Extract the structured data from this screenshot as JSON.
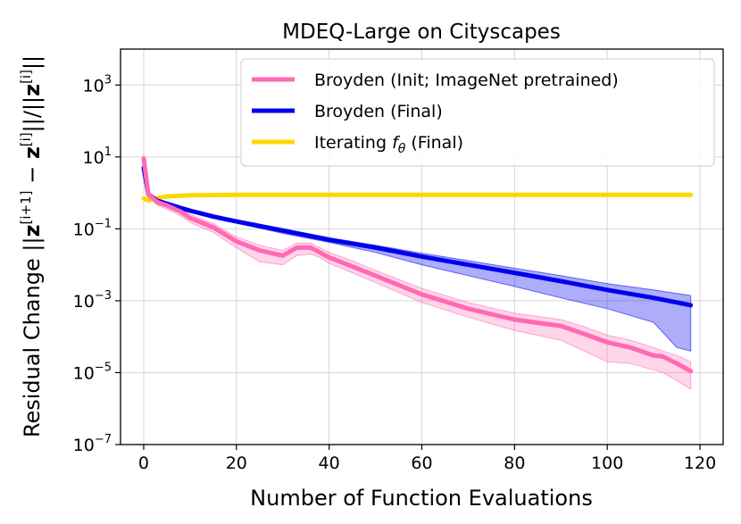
{
  "chart_data": {
    "type": "line",
    "title": "MDEQ-Large on Cityscapes",
    "xlabel": "Number of Function Evaluations",
    "ylabel": "Residual Change ||z[i+1] − z[i]||/||z[i]||",
    "ylabel_parts": {
      "prefix": "Residual Change ||",
      "z1": "z",
      "sup1": "[i+1]",
      "minus": " − ",
      "z2": "z",
      "sup2": "[i]",
      "mid": "||/||",
      "z3": "z",
      "sup3": "[i]",
      "end": "||"
    },
    "xlim": [
      -5,
      125
    ],
    "ylim_log10": [
      -7,
      4
    ],
    "yscale": "log",
    "grid": true,
    "legend_position": "top-right",
    "x_ticks": [
      {
        "value": 0,
        "label": "0"
      },
      {
        "value": 20,
        "label": "20"
      },
      {
        "value": 40,
        "label": "40"
      },
      {
        "value": 60,
        "label": "60"
      },
      {
        "value": 80,
        "label": "80"
      },
      {
        "value": 100,
        "label": "100"
      },
      {
        "value": 120,
        "label": "120"
      }
    ],
    "y_ticks": [
      {
        "exp": 3,
        "base": "10",
        "sup": "3"
      },
      {
        "exp": 1,
        "base": "10",
        "sup": "1"
      },
      {
        "exp": -1,
        "base": "10",
        "sup": "−1"
      },
      {
        "exp": -3,
        "base": "10",
        "sup": "−3"
      },
      {
        "exp": -5,
        "base": "10",
        "sup": "−5"
      },
      {
        "exp": -7,
        "base": "10",
        "sup": "−7"
      }
    ],
    "series": [
      {
        "name": "Broyden (Init; ImageNet pretrained)",
        "legend_label": "Broyden (Init; ImageNet pretrained)",
        "color": "#ff69b4",
        "band_color": "#ff69b4",
        "x": [
          0,
          1,
          3,
          5,
          8,
          10,
          15,
          20,
          25,
          30,
          33,
          36,
          38,
          40,
          45,
          50,
          60,
          70,
          80,
          90,
          95,
          100,
          105,
          110,
          112,
          115,
          118
        ],
        "y": [
          9,
          0.9,
          0.55,
          0.45,
          0.3,
          0.2,
          0.11,
          0.045,
          0.025,
          0.018,
          0.03,
          0.03,
          0.022,
          0.016,
          0.009,
          0.005,
          0.0015,
          0.0006,
          0.0003,
          0.0002,
          0.00012,
          7e-05,
          5e-05,
          3e-05,
          2.8e-05,
          1.8e-05,
          1.1e-05
        ],
        "upper": [
          12,
          1.1,
          0.65,
          0.55,
          0.36,
          0.25,
          0.14,
          0.06,
          0.035,
          0.025,
          0.04,
          0.04,
          0.03,
          0.022,
          0.013,
          0.007,
          0.0022,
          0.0009,
          0.00045,
          0.0003,
          0.00019,
          0.00011,
          8e-05,
          5e-05,
          4e-05,
          3e-05,
          2e-05
        ],
        "lower": [
          7,
          0.75,
          0.45,
          0.36,
          0.23,
          0.15,
          0.08,
          0.03,
          0.012,
          0.01,
          0.018,
          0.02,
          0.016,
          0.011,
          0.006,
          0.0032,
          0.0009,
          0.00035,
          0.00015,
          8e-05,
          4e-05,
          2e-05,
          1.8e-05,
          1.2e-05,
          1e-05,
          6e-06,
          3.5e-06
        ]
      },
      {
        "name": "Broyden (Final)",
        "legend_label": "Broyden (Final)",
        "color": "#0000ee",
        "band_color": "#0000ee",
        "x": [
          0,
          1,
          3,
          5,
          8,
          10,
          15,
          20,
          30,
          40,
          50,
          60,
          70,
          80,
          90,
          100,
          110,
          115,
          118
        ],
        "y": [
          5,
          0.9,
          0.6,
          0.5,
          0.38,
          0.32,
          0.22,
          0.16,
          0.09,
          0.05,
          0.03,
          0.017,
          0.01,
          0.006,
          0.0035,
          0.002,
          0.0012,
          0.0009,
          0.00075
        ],
        "upper": [
          5.5,
          1.0,
          0.66,
          0.55,
          0.42,
          0.35,
          0.24,
          0.17,
          0.1,
          0.056,
          0.035,
          0.021,
          0.013,
          0.008,
          0.005,
          0.003,
          0.002,
          0.0016,
          0.0014
        ],
        "lower": [
          4.5,
          0.8,
          0.55,
          0.45,
          0.34,
          0.29,
          0.2,
          0.145,
          0.075,
          0.042,
          0.022,
          0.01,
          0.005,
          0.0025,
          0.0012,
          0.0006,
          0.00025,
          5e-05,
          4e-05
        ]
      },
      {
        "name": "Iterating f_θ (Final)",
        "legend_label_prefix": "Iterating ",
        "legend_label_f": "f",
        "legend_label_sub": "θ",
        "legend_label_suffix": " (Final)",
        "color": "#ffd700",
        "x": [
          0,
          1,
          3,
          5,
          10,
          20,
          40,
          60,
          80,
          100,
          118
        ],
        "y": [
          0.7,
          0.62,
          0.72,
          0.8,
          0.86,
          0.88,
          0.88,
          0.88,
          0.88,
          0.88,
          0.88
        ]
      }
    ]
  }
}
